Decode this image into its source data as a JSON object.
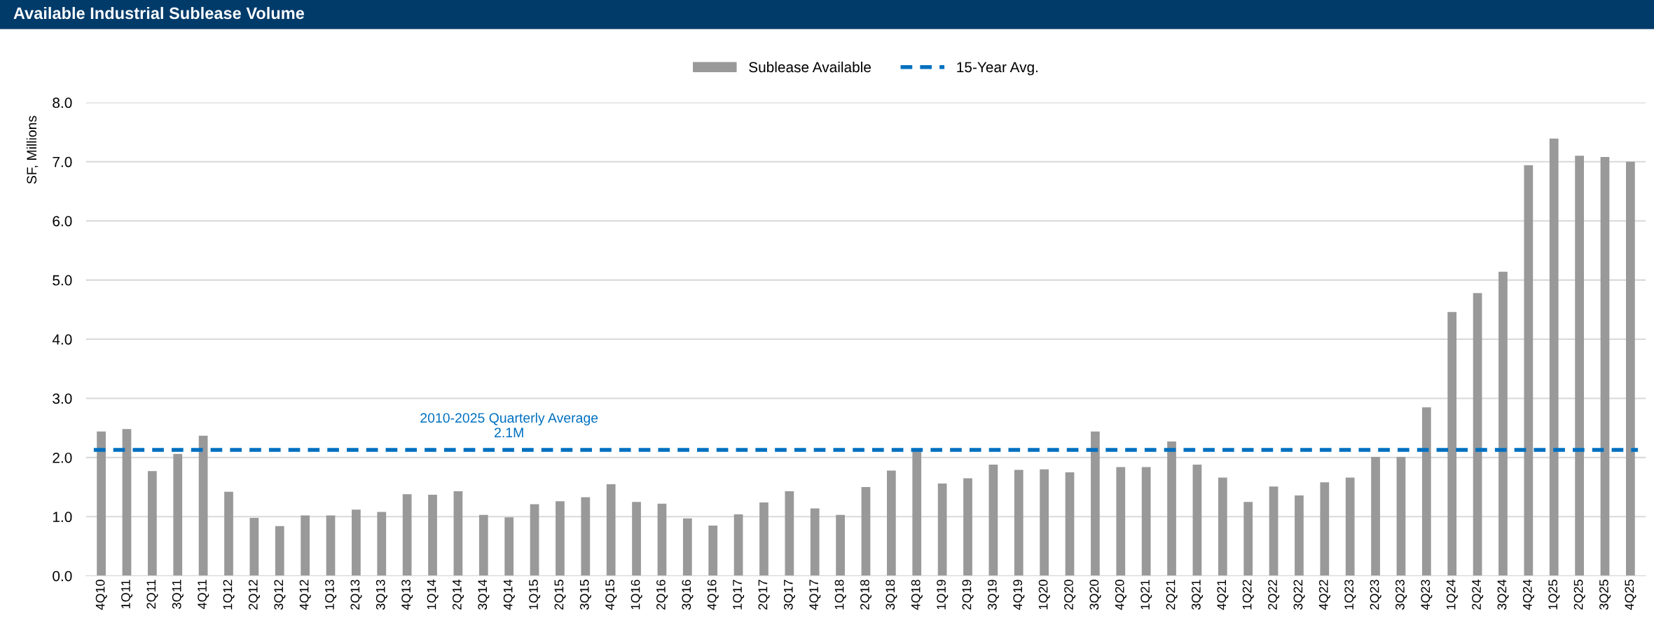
{
  "chart_data": {
    "type": "bar",
    "title": "Available Industrial Sublease Volume",
    "ylabel": "SF, Millions",
    "categories": [
      "4Q10",
      "1Q11",
      "2Q11",
      "3Q11",
      "4Q11",
      "1Q12",
      "2Q12",
      "3Q12",
      "4Q12",
      "1Q13",
      "2Q13",
      "3Q13",
      "4Q13",
      "1Q14",
      "2Q14",
      "3Q14",
      "4Q14",
      "1Q15",
      "2Q15",
      "3Q15",
      "4Q15",
      "1Q16",
      "2Q16",
      "3Q16",
      "4Q16",
      "1Q17",
      "2Q17",
      "3Q17",
      "4Q17",
      "1Q18",
      "2Q18",
      "3Q18",
      "4Q18",
      "1Q19",
      "2Q19",
      "3Q19",
      "4Q19",
      "1Q20",
      "2Q20",
      "3Q20",
      "4Q20",
      "1Q21",
      "2Q21",
      "3Q21",
      "4Q21",
      "1Q22",
      "2Q22",
      "3Q22",
      "4Q22",
      "1Q23",
      "2Q23",
      "3Q23",
      "4Q23",
      "1Q24",
      "2Q24",
      "3Q24",
      "4Q24",
      "1Q25",
      "2Q25",
      "3Q25",
      "4Q25"
    ],
    "series": [
      {
        "name": "Sublease Available",
        "color": "#999999",
        "values": [
          2.44,
          2.48,
          1.77,
          2.06,
          2.37,
          1.42,
          0.98,
          0.84,
          1.02,
          1.02,
          1.12,
          1.08,
          1.38,
          1.37,
          1.43,
          1.03,
          0.99,
          1.21,
          1.26,
          1.33,
          1.55,
          1.25,
          1.22,
          0.97,
          0.85,
          1.04,
          1.24,
          1.43,
          1.14,
          1.03,
          1.5,
          1.78,
          2.12,
          1.56,
          1.65,
          1.88,
          1.79,
          1.8,
          1.75,
          2.44,
          1.84,
          1.84,
          2.27,
          1.88,
          1.66,
          1.25,
          1.51,
          1.36,
          1.58,
          1.66,
          2.01,
          2.01,
          2.85,
          4.46,
          4.78,
          5.14,
          6.94,
          7.39,
          7.1,
          7.08,
          7.0
        ]
      }
    ],
    "ref_lines": [
      {
        "axis": "y",
        "value": 2.13,
        "label": "15-Year Avg.",
        "color": "#0070c0",
        "line_style": "dashed"
      }
    ],
    "annotations": [
      {
        "text": "2010-2025 Quarterly Average\n2.1M",
        "x": "4Q14",
        "y": 2.13
      }
    ],
    "ylim": [
      0,
      8
    ],
    "yticks": [
      {
        "value": 0,
        "label": "0.0"
      },
      {
        "value": 1,
        "label": "1.0"
      },
      {
        "value": 2,
        "label": "2.0"
      },
      {
        "value": 3,
        "label": "3.0"
      },
      {
        "value": 4,
        "label": "4.0"
      },
      {
        "value": 5,
        "label": "5.0"
      },
      {
        "value": 6,
        "label": "6.0"
      },
      {
        "value": 7,
        "label": "7.0"
      },
      {
        "value": 8,
        "label": "8.0"
      }
    ],
    "grid": "y",
    "legend": "top"
  }
}
